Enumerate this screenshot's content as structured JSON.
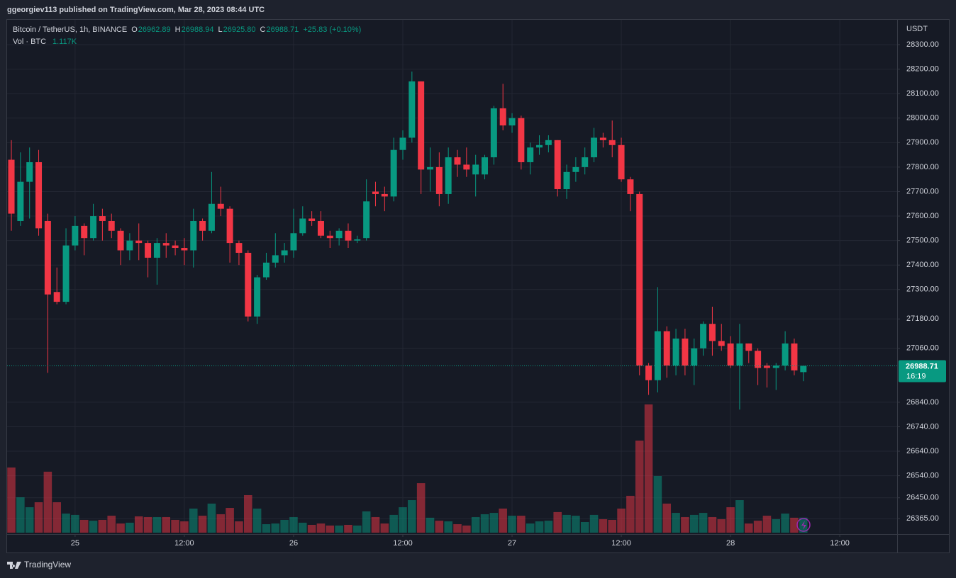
{
  "header": {
    "publisher": "ggeorgiev113 published on TradingView.com, Mar 28, 2023 08:44 UTC",
    "symbol": "Bitcoin / TetherUS, 1h, BINANCE",
    "ohlc": [
      {
        "key": "O",
        "value": "26962.89"
      },
      {
        "key": "H",
        "value": "26988.94"
      },
      {
        "key": "L",
        "value": "26925.80"
      },
      {
        "key": "C",
        "value": "26988.71"
      }
    ],
    "change": "+25.83 (+0.10%)",
    "volume_name": "Vol · BTC",
    "volume_last": "1.117K",
    "footer": "TradingView"
  },
  "chart_data": {
    "type": "candlestick",
    "currency": "USDT",
    "up_color": "#089981",
    "down_color": "#f23645",
    "grid": true,
    "open": [
      27830,
      27580,
      27740,
      27820,
      27580,
      27290,
      27250,
      27480,
      27560,
      27510,
      27600,
      27580,
      27540,
      27460,
      27500,
      27490,
      27430,
      27490,
      27480,
      27470,
      27460,
      27580,
      27540,
      27650,
      27630,
      27490,
      27450,
      27190,
      27350,
      27410,
      27440,
      27460,
      27530,
      27590,
      27580,
      27520,
      27510,
      27540,
      27500,
      27510,
      27700,
      27690,
      27680,
      27870,
      27920,
      28150,
      27790,
      27800,
      27690,
      27840,
      27810,
      27770,
      27770,
      27840,
      28040,
      27970,
      28000,
      27820,
      27880,
      27890,
      27910,
      27710,
      27780,
      27800,
      27840,
      27920,
      27910,
      27890,
      27750,
      27690,
      26990,
      26930,
      27130,
      26990,
      27100,
      26990,
      27060,
      27160,
      27090,
      27080,
      26990,
      27080,
      27050,
      26990,
      26980,
      26990,
      27080,
      26962.89
    ],
    "high": [
      27910,
      27860,
      27880,
      27870,
      27610,
      27390,
      27550,
      27600,
      27570,
      27650,
      27630,
      27610,
      27550,
      27530,
      27570,
      27500,
      27510,
      27530,
      27500,
      27510,
      27630,
      27590,
      27780,
      27720,
      27640,
      27500,
      27460,
      27360,
      27450,
      27530,
      27490,
      27630,
      27640,
      27620,
      27620,
      27540,
      27550,
      27570,
      27520,
      27750,
      27740,
      27720,
      27920,
      27950,
      28190,
      28150,
      27880,
      27860,
      27880,
      27870,
      27880,
      27850,
      27850,
      28050,
      28140,
      28020,
      28010,
      27900,
      27930,
      27930,
      27910,
      27810,
      27840,
      27880,
      27960,
      27940,
      27990,
      27920,
      27760,
      27700,
      27000,
      27310,
      27150,
      27140,
      27140,
      27100,
      27170,
      27230,
      27160,
      27110,
      27160,
      27080,
      27060,
      27000,
      27000,
      27130,
      27100,
      26988.94
    ],
    "low": [
      27540,
      27560,
      27590,
      27520,
      26960,
      27240,
      27240,
      27460,
      27440,
      27500,
      27500,
      27510,
      27400,
      27420,
      27420,
      27350,
      27320,
      27430,
      27440,
      27400,
      27390,
      27500,
      27530,
      27600,
      27410,
      27400,
      27170,
      27160,
      27340,
      27390,
      27410,
      27430,
      27520,
      27560,
      27510,
      27470,
      27480,
      27470,
      27490,
      27500,
      27640,
      27620,
      27660,
      27830,
      27900,
      27690,
      27700,
      27640,
      27650,
      27760,
      27760,
      27680,
      27750,
      27810,
      27950,
      27940,
      27790,
      27770,
      27850,
      27860,
      27680,
      27670,
      27740,
      27770,
      27820,
      27880,
      27840,
      27740,
      27620,
      26950,
      26870,
      26880,
      26940,
      26950,
      26950,
      26910,
      27030,
      27030,
      27050,
      26980,
      26810,
      27000,
      26910,
      26900,
      26890,
      26970,
      26950,
      26925.8
    ],
    "close": [
      27610,
      27740,
      27820,
      27550,
      27280,
      27250,
      27480,
      27560,
      27510,
      27600,
      27580,
      27540,
      27460,
      27500,
      27490,
      27430,
      27490,
      27480,
      27470,
      27460,
      27580,
      27540,
      27650,
      27630,
      27490,
      27450,
      27190,
      27350,
      27410,
      27440,
      27460,
      27530,
      27590,
      27580,
      27520,
      27510,
      27540,
      27500,
      27505,
      27660,
      27690,
      27680,
      27870,
      27920,
      28150,
      27790,
      27800,
      27690,
      27840,
      27810,
      27790,
      27810,
      27840,
      28040,
      27970,
      28000,
      27820,
      27880,
      27890,
      27910,
      27710,
      27780,
      27800,
      27840,
      27920,
      27910,
      27890,
      27750,
      27690,
      26990,
      26930,
      27130,
      26990,
      27100,
      26990,
      27060,
      27160,
      27090,
      27070,
      26990,
      27080,
      27050,
      26980,
      26980,
      26990,
      27080,
      26970,
      26988.71
    ],
    "volume": [
      4840,
      2630,
      1890,
      2260,
      4530,
      2260,
      1420,
      1320,
      950,
      890,
      950,
      1260,
      680,
      740,
      1210,
      1160,
      1160,
      1160,
      950,
      840,
      1790,
      1260,
      2160,
      1370,
      1840,
      840,
      2790,
      1790,
      630,
      680,
      950,
      1160,
      740,
      580,
      680,
      530,
      530,
      580,
      530,
      1580,
      1160,
      680,
      1320,
      1890,
      2420,
      3680,
      1110,
      890,
      840,
      630,
      530,
      1160,
      1370,
      1470,
      1790,
      1260,
      1260,
      680,
      840,
      890,
      1530,
      1320,
      1260,
      790,
      1320,
      1000,
      950,
      1790,
      2740,
      6840,
      9530,
      4210,
      2160,
      1470,
      1160,
      1320,
      1470,
      1160,
      1000,
      1890,
      2420,
      680,
      890,
      1260,
      1000,
      1420,
      1110,
      1117
    ],
    "last_price": 26988.71,
    "countdown": "16:19",
    "xlim": [
      -0.47,
      97.3
    ],
    "xticks": [
      {
        "value": 7,
        "label": "25"
      },
      {
        "value": 19,
        "label": "12:00"
      },
      {
        "value": 31,
        "label": "26"
      },
      {
        "value": 43,
        "label": "12:00"
      },
      {
        "value": 55,
        "label": "27"
      },
      {
        "value": 67,
        "label": "12:00"
      },
      {
        "value": 79,
        "label": "28"
      },
      {
        "value": 91,
        "label": "12:00"
      }
    ],
    "ylim": [
      26307.5,
      28401.2
    ],
    "yticks": [
      {
        "value": 28300,
        "label": "28300.00"
      },
      {
        "value": 28200,
        "label": "28200.00"
      },
      {
        "value": 28100,
        "label": "28100.00"
      },
      {
        "value": 28000,
        "label": "28000.00"
      },
      {
        "value": 27900,
        "label": "27900.00"
      },
      {
        "value": 27800,
        "label": "27800.00"
      },
      {
        "value": 27700,
        "label": "27700.00"
      },
      {
        "value": 27600,
        "label": "27600.00"
      },
      {
        "value": 27500,
        "label": "27500.00"
      },
      {
        "value": 27400,
        "label": "27400.00"
      },
      {
        "value": 27300,
        "label": "27300.00"
      },
      {
        "value": 27180,
        "label": "27180.00"
      },
      {
        "value": 27060,
        "label": "27060.00"
      },
      {
        "value": 26840,
        "label": "26840.00"
      },
      {
        "value": 26740,
        "label": "26740.00"
      },
      {
        "value": 26640,
        "label": "26640.00"
      },
      {
        "value": 26540,
        "label": "26540.00"
      },
      {
        "value": 26450,
        "label": "26450.00"
      },
      {
        "value": 26365,
        "label": "26365.00"
      }
    ],
    "volume_ylim": [
      0,
      38100
    ]
  }
}
